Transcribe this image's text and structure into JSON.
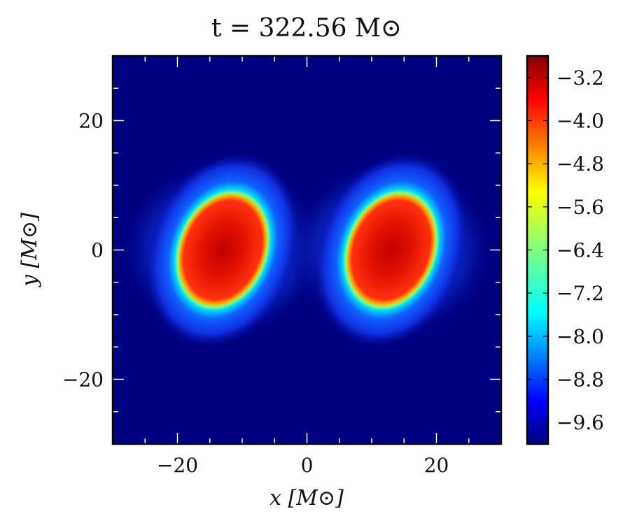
{
  "chart_data": {
    "type": "heatmap",
    "title": "t = 322.56 M⊙",
    "xlabel": "x [M⊙]",
    "ylabel": "y [M⊙]",
    "xlim": [
      -30,
      30
    ],
    "ylim": [
      -30,
      30
    ],
    "xticks": [
      -20,
      0,
      20
    ],
    "yticks": [
      -20,
      0,
      20
    ],
    "x_tick_labels": [
      "−20",
      "0",
      "20"
    ],
    "y_tick_labels": [
      "−20",
      "0",
      "20"
    ],
    "colormap": "jet",
    "colorbar": {
      "range": [
        -10.0,
        -2.8
      ],
      "ticks": [
        -3.2,
        -4.0,
        -4.8,
        -5.6,
        -6.4,
        -7.2,
        -8.0,
        -8.8,
        -9.6
      ],
      "tick_labels": [
        "−3.2",
        "−4.0",
        "−4.8",
        "−5.6",
        "−6.4",
        "−7.2",
        "−8.0",
        "−8.8",
        "−9.6"
      ]
    },
    "background_value": -9.9,
    "blobs": [
      {
        "center": [
          -13,
          0
        ],
        "core_semi_axes": [
          7,
          9.5
        ],
        "tilt_deg": 20,
        "core_value": -3.0,
        "halo_radius": [
          16,
          14
        ]
      },
      {
        "center": [
          13,
          0
        ],
        "core_semi_axes": [
          7,
          9.5
        ],
        "tilt_deg": 20,
        "core_value": -3.0,
        "halo_radius": [
          16,
          14
        ]
      }
    ],
    "grid": false
  }
}
